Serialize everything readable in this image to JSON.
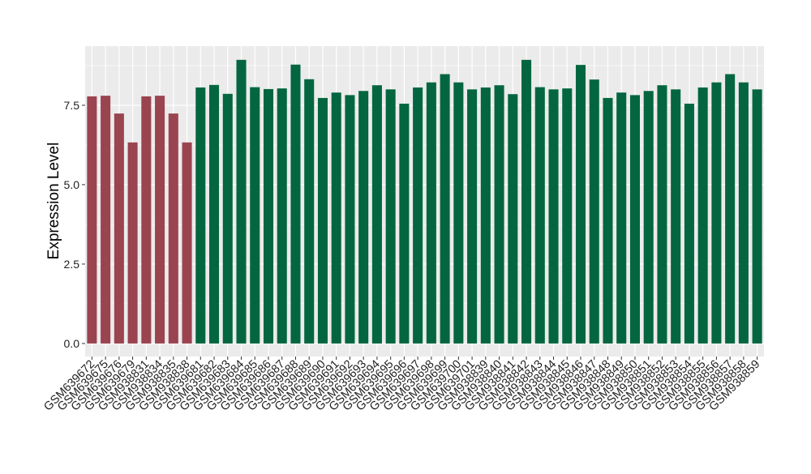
{
  "chart_data": {
    "type": "bar",
    "y_label": "Expression Level",
    "categories": [
      "GSM639672",
      "GSM639675",
      "GSM639676",
      "GSM639679",
      "GSM938831",
      "GSM938834",
      "GSM938835",
      "GSM938838",
      "GSM639681",
      "GSM639682",
      "GSM639683",
      "GSM639684",
      "GSM639685",
      "GSM639686",
      "GSM639687",
      "GSM639688",
      "GSM639689",
      "GSM639690",
      "GSM639691",
      "GSM639692",
      "GSM639693",
      "GSM639694",
      "GSM639695",
      "GSM639696",
      "GSM639697",
      "GSM639698",
      "GSM639699",
      "GSM639700",
      "GSM639701",
      "GSM938839",
      "GSM938840",
      "GSM938841",
      "GSM938842",
      "GSM938843",
      "GSM938844",
      "GSM938845",
      "GSM938846",
      "GSM938847",
      "GSM938848",
      "GSM938849",
      "GSM938850",
      "GSM938851",
      "GSM938852",
      "GSM938853",
      "GSM938854",
      "GSM938855",
      "GSM938856",
      "GSM938857",
      "GSM938858",
      "GSM938859"
    ],
    "values": [
      7.78,
      7.8,
      7.24,
      6.33,
      7.78,
      7.8,
      7.24,
      6.33,
      8.06,
      8.14,
      7.86,
      8.93,
      8.07,
      8.01,
      8.03,
      8.78,
      8.32,
      7.73,
      7.9,
      7.82,
      7.95,
      8.13,
      8.0,
      7.55,
      8.06,
      8.22,
      8.48,
      8.22,
      8.0,
      8.06,
      8.13,
      7.85,
      8.93,
      8.07,
      8.0,
      8.03,
      8.77,
      8.31,
      7.73,
      7.9,
      7.82,
      7.95,
      8.13,
      8.0,
      7.55,
      8.06,
      8.22,
      8.48,
      8.22,
      8.0
    ],
    "colors": [
      "#9a4450",
      "#9a4450",
      "#9a4450",
      "#9a4450",
      "#9a4450",
      "#9a4450",
      "#9a4450",
      "#9a4450",
      "#046640",
      "#046640",
      "#046640",
      "#046640",
      "#046640",
      "#046640",
      "#046640",
      "#046640",
      "#046640",
      "#046640",
      "#046640",
      "#046640",
      "#046640",
      "#046640",
      "#046640",
      "#046640",
      "#046640",
      "#046640",
      "#046640",
      "#046640",
      "#046640",
      "#046640",
      "#046640",
      "#046640",
      "#046640",
      "#046640",
      "#046640",
      "#046640",
      "#046640",
      "#046640",
      "#046640",
      "#046640",
      "#046640",
      "#046640",
      "#046640",
      "#046640",
      "#046640",
      "#046640",
      "#046640",
      "#046640",
      "#046640",
      "#046640"
    ],
    "ylim": [
      -0.41,
      9.36
    ],
    "yticks": [
      {
        "value": 0,
        "label": "0.0"
      },
      2.5,
      {
        "value": 5,
        "label": "5.0"
      },
      7.5
    ],
    "grid": true,
    "panel_color": "#ebebeb"
  }
}
